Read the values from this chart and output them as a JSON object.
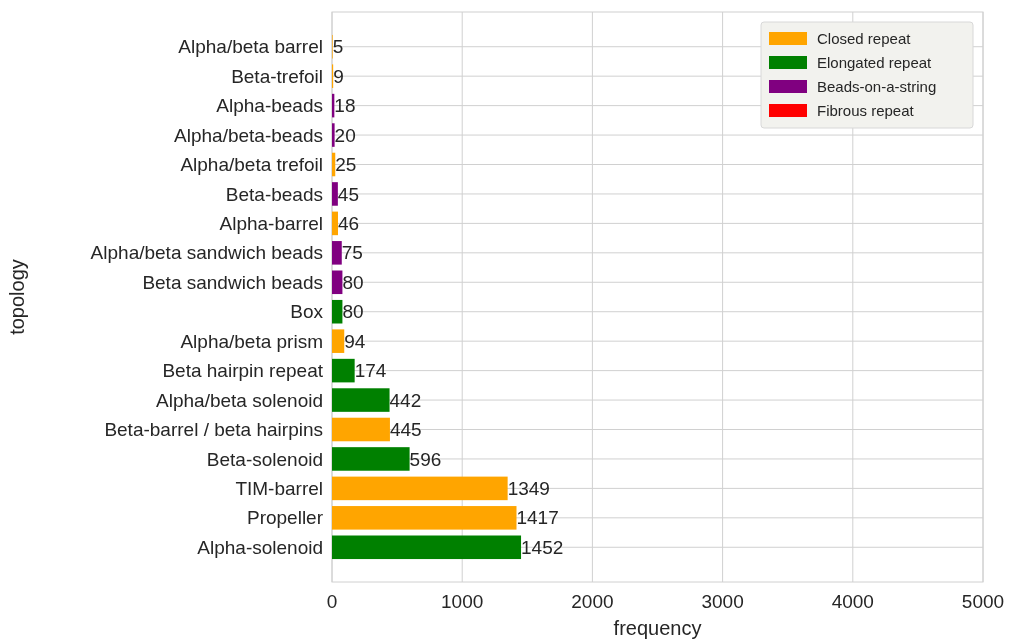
{
  "chart_data": {
    "type": "bar",
    "orientation": "horizontal",
    "xlabel": "frequency",
    "ylabel": "topology",
    "categories": [
      "Alpha/beta barrel",
      "Beta-trefoil",
      "Alpha-beads",
      "Alpha/beta-beads",
      "Alpha/beta trefoil",
      "Beta-beads",
      "Alpha-barrel",
      "Alpha/beta sandwich beads",
      "Beta sandwich beads",
      "Box",
      "Alpha/beta prism",
      "Beta hairpin repeat",
      "Alpha/beta solenoid",
      "Beta-barrel / beta hairpins",
      "Beta-solenoid",
      "TIM-barrel",
      "Propeller",
      "Alpha-solenoid"
    ],
    "series": [
      {
        "name": "Closed repeat",
        "color": "#ffa500",
        "values": [
          5,
          9,
          null,
          null,
          25,
          null,
          46,
          null,
          null,
          null,
          94,
          null,
          null,
          445,
          null,
          1349,
          1417,
          null
        ]
      },
      {
        "name": "Elongated repeat",
        "color": "#008000",
        "values": [
          null,
          null,
          null,
          null,
          null,
          null,
          null,
          null,
          null,
          80,
          null,
          174,
          442,
          null,
          596,
          null,
          null,
          1452
        ]
      },
      {
        "name": "Beads-on-a-string",
        "color": "#800080",
        "values": [
          null,
          null,
          18,
          20,
          null,
          45,
          null,
          75,
          80,
          null,
          null,
          null,
          null,
          null,
          null,
          null,
          null,
          null
        ]
      },
      {
        "name": "Fibrous repeat",
        "color": "#ff0000",
        "values": [
          null,
          null,
          null,
          null,
          null,
          null,
          null,
          null,
          null,
          null,
          null,
          null,
          null,
          null,
          null,
          null,
          null,
          null
        ]
      }
    ],
    "xlim": [
      0,
      5000
    ],
    "xticks": [
      0,
      1000,
      2000,
      3000,
      4000,
      5000
    ],
    "grid": true,
    "legend": "top right",
    "data_labels": true
  }
}
